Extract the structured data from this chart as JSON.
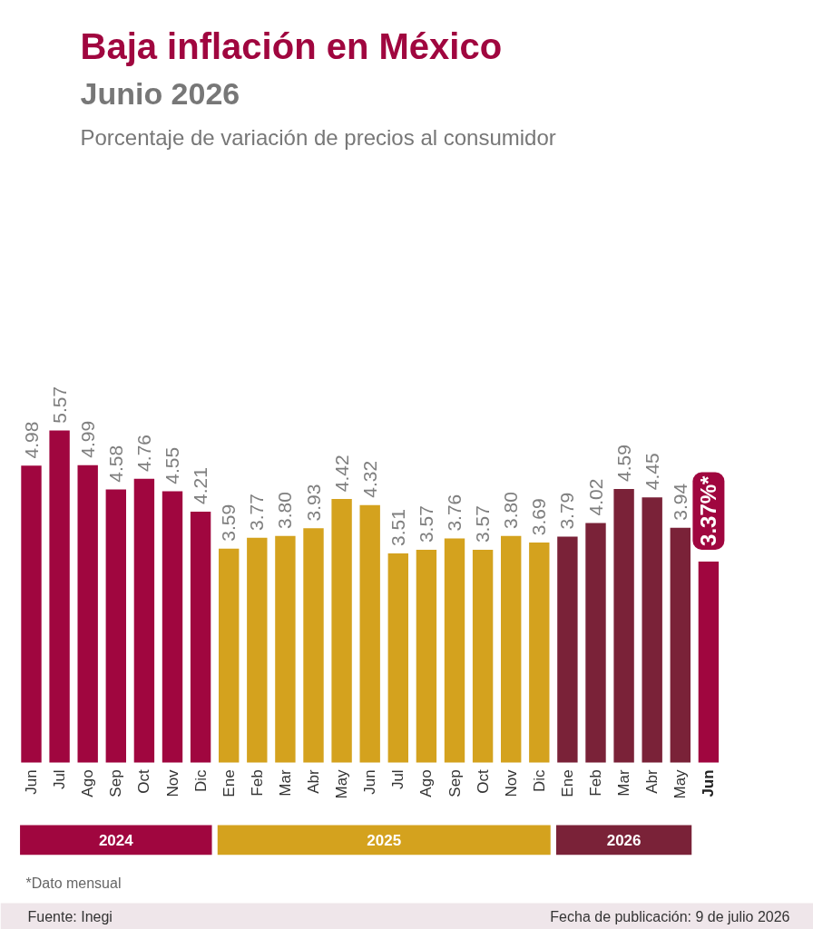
{
  "chart_data": {
    "type": "bar",
    "title": "Baja inflación en México",
    "subtitle": "Junio 2026",
    "categories": [
      "Jun",
      "Jul",
      "Ago",
      "Sep",
      "Oct",
      "Nov",
      "Dic",
      "Ene",
      "Feb",
      "Mar",
      "Abr",
      "May",
      "Jun",
      "Jul",
      "Ago",
      "Sep",
      "Oct",
      "Nov",
      "Dic",
      "Ene",
      "Feb",
      "Mar",
      "Abr",
      "May",
      "Jun"
    ],
    "values": [
      4.98,
      5.57,
      4.99,
      4.58,
      4.76,
      4.55,
      4.21,
      3.59,
      3.77,
      3.8,
      3.93,
      4.42,
      4.32,
      3.51,
      3.57,
      3.76,
      3.57,
      3.8,
      3.69,
      3.79,
      4.02,
      4.59,
      4.45,
      3.94,
      3.37
    ],
    "colors": [
      "#a0063f",
      "#a0063f",
      "#a0063f",
      "#a0063f",
      "#a0063f",
      "#a0063f",
      "#a0063f",
      "#d4a21e",
      "#d4a21e",
      "#d4a21e",
      "#d4a21e",
      "#d4a21e",
      "#d4a21e",
      "#d4a21e",
      "#d4a21e",
      "#d4a21e",
      "#d4a21e",
      "#d4a21e",
      "#d4a21e",
      "#7a2238",
      "#7a2238",
      "#7a2238",
      "#7a2238",
      "#7a2238",
      "#a0063f"
    ],
    "value_labels": [
      "4.98",
      "5.57",
      "4.99",
      "4.58",
      "4.76",
      "4.55",
      "4.21",
      "3.59",
      "3.77",
      "3.80",
      "3.93",
      "4.42",
      "4.32",
      "3.51",
      "3.57",
      "3.76",
      "3.57",
      "3.80",
      "3.69",
      "3.79",
      "4.02",
      "4.59",
      "4.45",
      "3.94",
      "3.37%*"
    ],
    "annotations": [
      "Porcentaje de variación de precios al consumidor",
      "2024",
      "2025",
      "2026",
      "*Dato mensual",
      "Fuente: Inegi",
      "Fecha de publicación: 9 de julio 2026"
    ],
    "grid": false
  }
}
